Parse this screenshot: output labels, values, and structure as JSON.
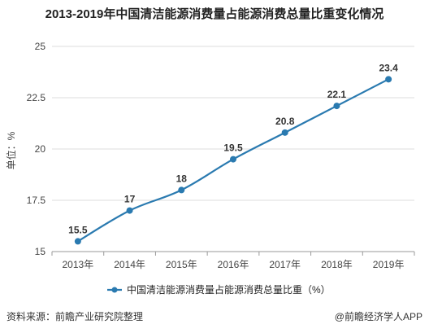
{
  "title": "2013-2019年中国清洁能源消费量占能源消费总量比重变化情况",
  "chart_data": {
    "type": "line",
    "categories": [
      "2013年",
      "2014年",
      "2015年",
      "2016年",
      "2017年",
      "2018年",
      "2019年"
    ],
    "series": [
      {
        "name": "中国清洁能源消费量占能源消费总量比重（%）",
        "values": [
          15.5,
          17,
          18,
          19.5,
          20.8,
          22.1,
          23.4
        ],
        "labels": [
          "15.5",
          "17",
          "18",
          "19.5",
          "20.8",
          "22.1",
          "23.4"
        ]
      }
    ],
    "ylabel": "单位：%",
    "ylim": [
      15,
      25
    ],
    "yticks": [
      15,
      17.5,
      20,
      22.5,
      25
    ],
    "ytick_labels": [
      "15",
      "17.5",
      "20",
      "22.5",
      "25"
    ],
    "grid": true,
    "legend": "bottom",
    "line_color": "#2a7ab0"
  },
  "watermark": "前瞻产业研究院",
  "footer": {
    "source": "资料来源：前瞻产业研究院整理",
    "credit": "@前瞻经济学人APP"
  }
}
